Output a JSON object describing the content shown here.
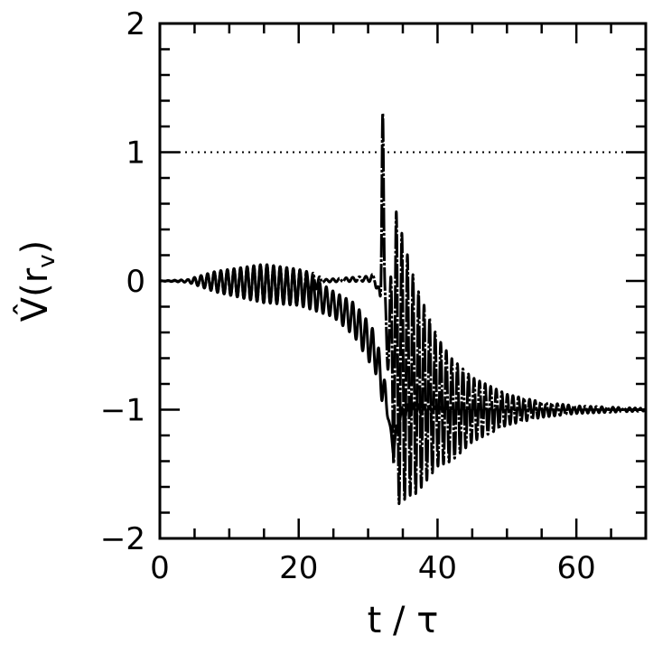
{
  "chart_data": {
    "type": "line",
    "title": "",
    "xlabel": "t / τ",
    "ylabel": "V̂(r",
    "ylabel_subscript": "v",
    "ylabel_close": ")",
    "xlim": [
      0,
      70
    ],
    "ylim": [
      -2,
      2
    ],
    "x_ticks": [
      0,
      20,
      40,
      60
    ],
    "x_tick_labels": [
      "0",
      "20",
      "40",
      "60"
    ],
    "x_minor_step": 5,
    "y_ticks": [
      -2,
      -1,
      0,
      1,
      2
    ],
    "y_tick_labels": [
      "−2",
      "−1",
      "0",
      "1",
      "2"
    ],
    "y_minor_step": 0.2,
    "grid": false,
    "reference_line": {
      "name": "dotted-reference",
      "y": 1,
      "style": "dotted"
    },
    "oscillation_period": [
      [
        0,
        0.95
      ],
      [
        30,
        0.95
      ],
      [
        34,
        0.8
      ],
      [
        70,
        0.8
      ]
    ],
    "series": [
      {
        "name": "solid",
        "style": "solid",
        "mean": [
          [
            0,
            0
          ],
          [
            5,
            0
          ],
          [
            15,
            -0.02
          ],
          [
            20,
            -0.05
          ],
          [
            25,
            -0.18
          ],
          [
            28,
            -0.3
          ],
          [
            31,
            -0.55
          ],
          [
            32.5,
            -0.9
          ],
          [
            33.6,
            -1.3
          ],
          [
            34.6,
            -1.05
          ],
          [
            36,
            -1
          ],
          [
            70,
            -1
          ]
        ],
        "amplitude": [
          [
            0,
            0
          ],
          [
            4,
            0.01
          ],
          [
            8,
            0.08
          ],
          [
            15,
            0.15
          ],
          [
            20,
            0.14
          ],
          [
            25,
            0.1
          ],
          [
            30,
            0.15
          ],
          [
            32,
            0.15
          ],
          [
            33,
            0.02
          ],
          [
            34.5,
            0.06
          ],
          [
            40,
            0.02
          ],
          [
            50,
            0.005
          ],
          [
            70,
            0
          ]
        ]
      },
      {
        "name": "dash-dot",
        "style": "dashdot",
        "mean": [
          [
            0,
            0
          ],
          [
            5,
            0
          ],
          [
            15,
            -0.02
          ],
          [
            20,
            -0.05
          ],
          [
            23,
            0
          ],
          [
            31,
            0.02
          ],
          [
            33,
            -0.45
          ],
          [
            34,
            -0.6
          ],
          [
            37,
            -0.85
          ],
          [
            42,
            -1
          ],
          [
            70,
            -1
          ]
        ],
        "amplitude": [
          [
            0,
            0
          ],
          [
            4,
            0.01
          ],
          [
            8,
            0.08
          ],
          [
            15,
            0.15
          ],
          [
            20,
            0.14
          ],
          [
            22,
            0.08
          ],
          [
            23.5,
            0.01
          ],
          [
            30,
            0.02
          ],
          [
            31.5,
            0.05
          ],
          [
            33,
            0.3
          ],
          [
            34,
            1.15
          ],
          [
            36,
            0.9
          ],
          [
            40,
            0.5
          ],
          [
            45,
            0.25
          ],
          [
            50,
            0.12
          ],
          [
            55,
            0.06
          ],
          [
            60,
            0.03
          ],
          [
            70,
            0.01
          ]
        ],
        "spike": {
          "t": 32.1,
          "value": 1.68
        }
      }
    ]
  }
}
